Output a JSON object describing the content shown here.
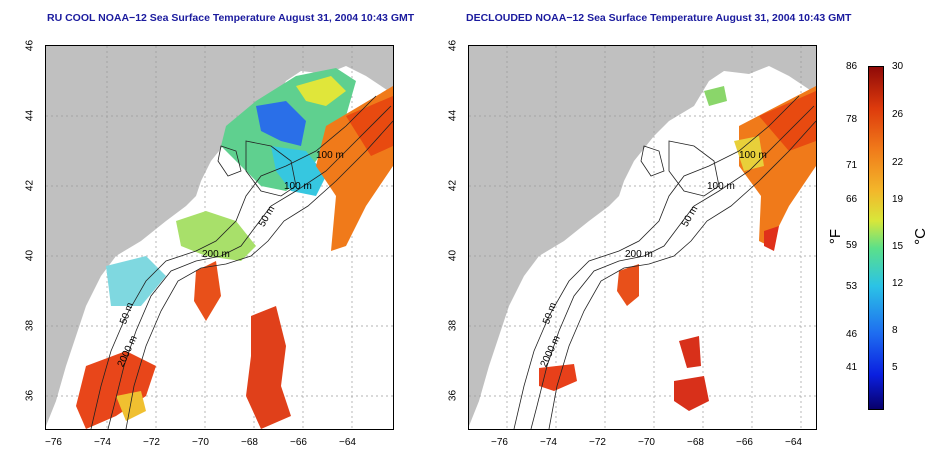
{
  "left_panel": {
    "title": "RU COOL NOAA−12 Sea Surface Temperature August 31, 2004 10:43 GMT"
  },
  "right_panel": {
    "title": "DECLOUDED NOAA−12 Sea Surface Temperature August 31, 2004 10:43 GMT"
  },
  "axes": {
    "x_ticks": [
      "−76",
      "−74",
      "−72",
      "−70",
      "−68",
      "−66",
      "−64"
    ],
    "y_ticks": [
      "46",
      "44",
      "42",
      "40",
      "38",
      "36"
    ]
  },
  "contours": {
    "left": [
      "100 m",
      "100 m",
      "50 m",
      "200 m",
      "50 m",
      "2000 m"
    ],
    "right": [
      "100 m",
      "100 m",
      "50 m",
      "200 m",
      "50 m",
      "2000 m"
    ]
  },
  "colorbar": {
    "fahrenheit": [
      "86",
      "78",
      "71",
      "66",
      "59",
      "53",
      "46",
      "41"
    ],
    "celsius": [
      "30",
      "26",
      "22",
      "19",
      "15",
      "12",
      "8",
      "5"
    ],
    "unit_f": "°F",
    "unit_c": "°C"
  },
  "colors": {
    "land": "#c0c0c0",
    "title": "#1b1b9e"
  }
}
